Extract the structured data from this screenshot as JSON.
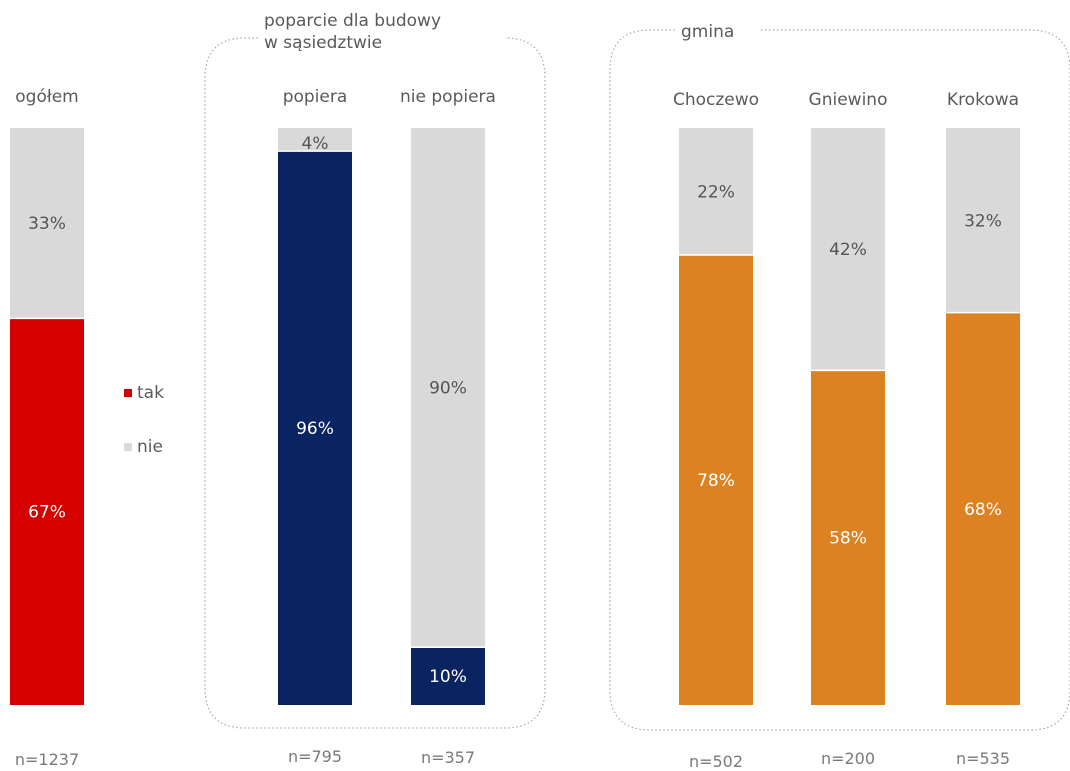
{
  "chart_data": {
    "type": "bar",
    "stacked": true,
    "normalized": true,
    "ylim": [
      0,
      100
    ],
    "grid": false,
    "legend": {
      "placement": "middle-left",
      "entries": [
        {
          "name": "tak",
          "color": "#d50000"
        },
        {
          "name": "nie",
          "color": "#d9d9d9"
        }
      ]
    },
    "groups": [
      {
        "title": "",
        "bars": [
          {
            "category": "ogółem",
            "tak": 67,
            "nie": 33,
            "tak_label": "67%",
            "nie_label": "33%",
            "n": "n=1237",
            "color": "#d50000"
          }
        ]
      },
      {
        "title": "poparcie dla budowy w sąsiedztwie",
        "title_lines": [
          "poparcie dla budowy",
          "w sąsiedztwie"
        ],
        "bars": [
          {
            "category": "popiera",
            "tak": 96,
            "nie": 4,
            "tak_label": "96%",
            "nie_label": "4%",
            "n": "n=795",
            "color": "#0a2461"
          },
          {
            "category": "nie popiera",
            "tak": 10,
            "nie": 90,
            "tak_label": "10%",
            "nie_label": "90%",
            "n": "n=357",
            "color": "#0a2461"
          }
        ]
      },
      {
        "title": "gmina",
        "title_lines": [
          "gmina"
        ],
        "bars": [
          {
            "category": "Choczewo",
            "tak": 78,
            "nie": 22,
            "tak_label": "78%",
            "nie_label": "22%",
            "n": "n=502",
            "color": "#dc8222"
          },
          {
            "category": "Gniewino",
            "tak": 58,
            "nie": 42,
            "tak_label": "58%",
            "nie_label": "42%",
            "n": "n=200",
            "color": "#dc8222"
          },
          {
            "category": "Krokowa",
            "tak": 68,
            "nie": 32,
            "tak_label": "68%",
            "nie_label": "32%",
            "n": "n=535",
            "color": "#dc8222"
          }
        ]
      }
    ]
  }
}
